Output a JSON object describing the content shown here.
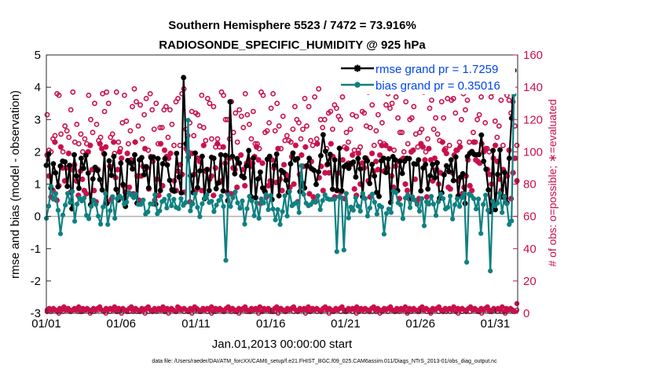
{
  "chart_data": {
    "type": "line",
    "title": "Southern Hemisphere 5523 / 7472 = 73.916%",
    "subtitle": "RADIOSONDE_SPECIFIC_HUMIDITY @ 925 hPa",
    "xlabel": "Jan.01,2013 00:00:00 start",
    "ylabel": "rmse and bias (model - observation)",
    "y2label": "# of obs: o=possible; ∗=evaluated",
    "x_tick_labels": [
      "01/01",
      "01/06",
      "01/11",
      "01/16",
      "01/21",
      "01/26",
      "01/31"
    ],
    "x_tick_days": [
      0,
      5,
      10,
      15,
      20,
      25,
      30
    ],
    "xlim": [
      0,
      31.5
    ],
    "ylim": [
      -3,
      5
    ],
    "y_ticks": [
      -3,
      -2,
      -1,
      0,
      1,
      2,
      3,
      4,
      5
    ],
    "y2lim": [
      0,
      160
    ],
    "y2_ticks": [
      0,
      20,
      40,
      60,
      80,
      100,
      120,
      140,
      160
    ],
    "legend": [
      "rmse grand pr = 1.7259",
      "bias grand pr = 0.35016"
    ],
    "footer": "data file: /Users/raeder/DAI/ATM_forcXX/CAM6_setup/f.e21.FHIST_BGC.f09_025.CAM6assim.011/Diags_NTrS_2013-01/obs_diag_output.nc",
    "series": [
      {
        "name": "rmse",
        "color": "#000000",
        "values": [
          1.58,
          1.93,
          0.88,
          1.63,
          1.35,
          0.92,
          1.56,
          1.71,
          1.69,
          0.93,
          1.58,
          0.24,
          1.91,
          1.25,
          0.87,
          1.8,
          1.49,
          1.89,
          1.34,
          0.36,
          1.16,
          1.52,
          1.42,
          1.14,
          0.82,
          1.93,
          0.4,
          1.72,
          1.27,
          1.86,
          0.84,
          0.51,
          1.65,
          0.99,
          0.31,
          1.73,
          1.66,
          1.47,
          1.91,
          0.41,
          1.75,
          1.82,
          1.29,
          1.54,
          0.88,
          1.82,
          1.84,
          0.38,
          1.79,
          0.8,
          1.63,
          1.79,
          1.59,
          1.12,
          0.83,
          0.78,
          1.95,
          1.22,
          0.73,
          4.3,
          2.25,
          1.83,
          1.26,
          0.74,
          1.96,
          0.89,
          1.41,
          1.86,
          0.55,
          1.45,
          0.8,
          1.83,
          1.8,
          0.86,
          1.04,
          1.91,
          0.79,
          1.89,
          0.49,
          3.55,
          1.86,
          1.32,
          1.79,
          1.65,
          1.25,
          1.2,
          1.57,
          2.04,
          0.61,
          1.81,
          0.58,
          1.16,
          1.37,
          0.88,
          0.76,
          1.77,
          1.86,
          0.52,
          1.58,
          1.93,
          0.64,
          1.42,
          1.36,
          1.12,
          0.75,
          1.63,
          1.96,
          1.75,
          1.79,
          0.77,
          1.03,
          0.88,
          1.57,
          1.8,
          1.48,
          1.43,
          0.99,
          1.38,
          1.88,
          2.53,
          2.02,
          1.62,
          1.92,
          0.84,
          1.75,
          0.81,
          2.11,
          0.79,
          1.54,
          1.6,
          1.49,
          1.64,
          1.68,
          1.22,
          1.79,
          1.47,
          0.61,
          1.81,
          1.72,
          1.02,
          1.61,
          1.25,
          0.74,
          0.62,
          1.72,
          1.8,
          1.36,
          1.78,
          0.43,
          1.85,
          1.75,
          0.8,
          1.71,
          1.33,
          1.71,
          1.8,
          1.79,
          0.54,
          1.63,
          1.62,
          1.75,
          0.79,
          1.5,
          1.61,
          0.85,
          1.26,
          1.61,
          1.2,
          1.66,
          0.56,
          0.73,
          1.29,
          1.57,
          1.39,
          1.75,
          1.11,
          1.84,
          0.63,
          1.21,
          1.32,
          0.4,
          1.85,
          1.95,
          2.01,
          1.92,
          1.91,
          1.92,
          2.52,
          1.71,
          1.46,
          0.82,
          0.15,
          2.04,
          0.21,
          1.3,
          2.06,
          0.6,
          1.36,
          0.42,
          1.8,
          3.04,
          4.52
        ]
      },
      {
        "name": "bias",
        "color": "#108080",
        "values": [
          -0.06,
          0.32,
          0.93,
          0.53,
          0.71,
          0.19,
          -0.54,
          0.04,
          0.35,
          0.71,
          0.43,
          0.77,
          -0.15,
          0.38,
          0.57,
          0.48,
          0.57,
          0.03,
          -0.07,
          0.31,
          0.51,
          0.37,
          0.01,
          -0.24,
          0.29,
          0.71,
          -0.25,
          0.18,
          0.61,
          -0.06,
          0.55,
          0.63,
          0.57,
          0.38,
          0.44,
          0.74,
          0.66,
          0.58,
          0.69,
          0.37,
          0.37,
          0.51,
          0.07,
          0.14,
          0.39,
          0.38,
          0.67,
          0.08,
          0.17,
          0.46,
          0.53,
          0.26,
          0.65,
          0.33,
          0.53,
          0.28,
          0.24,
          0.55,
          0.34,
          0.43,
          2.98,
          0.17,
          0.39,
          0.7,
          0.28,
          -0.01,
          0.39,
          0.57,
          0.67,
          0.43,
          0.47,
          0.15,
          0.35,
          0.49,
          0.63,
          0.31,
          -1.36,
          0.67,
          0.31,
          0.58,
          0.76,
          0.42,
          0.25,
          0.48,
          -0.24,
          0.24,
          0.62,
          0.48,
          0.02,
          0.42,
          -0.06,
          0.54,
          0.42,
          0.67,
          0.21,
          0.65,
          0.23,
          -0.11,
          0.21,
          -0.25,
          0.15,
          0.64,
          0.01,
          0.77,
          0.33,
          0.39,
          0.43,
          0.12,
          1.57,
          0.68,
          0.41,
          0.33,
          0.37,
          0.46,
          0.45,
          0.64,
          0.21,
          0.49,
          0.67,
          0.55,
          0.52,
          0.53,
          0.53,
          -1.09,
          0.61,
          0.58,
          -1.04,
          0.71,
          -0.05,
          0.29,
          0.19,
          0.58,
          0.32,
          0.16,
          0.71,
          0.55,
          0.01,
          0.26,
          0.69,
          0.44,
          0.07,
          0.34,
          0.29,
          -0.55,
          0.09,
          0.23,
          0.12,
          0.79,
          0.74,
          0.42,
          0.36,
          -0.07,
          0.57,
          0.66,
          0.27,
          0.61,
          0.51,
          0.37,
          0.16,
          0.55,
          -0.29,
          0.45,
          0.38,
          0.62,
          0.38,
          0.03,
          0.45,
          0.69,
          0.55,
          0.23,
          0.28,
          0.63,
          -0.08,
          0.36,
          0.55,
          0.31,
          0.58,
          0.7,
          -1.42,
          0.69,
          0.64,
          0.55,
          0.23,
          0.54,
          -0.53,
          0.37,
          0.66,
          0.19,
          -1.69,
          0.47,
          0.33,
          0.41,
          0.72,
          0.12,
          0.62,
          0.39,
          -0.25,
          -0.14,
          3.77
        ]
      }
    ],
    "possible_counts": [
      123,
      101,
      100,
      108,
      110,
      136,
      135,
      111,
      100,
      116,
      113,
      109,
      126,
      137,
      106,
      117,
      105,
      111,
      100,
      108,
      105,
      135,
      120,
      112,
      130,
      117,
      107,
      109,
      136,
      125,
      137,
      130,
      109,
      111,
      99,
      137,
      106,
      102,
      118,
      135,
      119,
      105,
      113,
      128,
      139,
      131,
      116,
      129,
      108,
      123,
      133,
      101,
      136,
      126,
      114,
      130,
      105,
      115,
      115,
      126,
      128,
      109,
      126,
      117,
      104,
      131,
      133,
      104,
      136,
      139,
      114,
      110,
      118,
      125,
      110,
      124,
      123,
      116,
      135,
      115,
      107,
      133,
      130,
      108,
      128,
      103,
      108,
      103,
      137,
      135,
      120,
      120,
      108,
      131,
      112,
      124,
      106,
      126,
      122,
      115,
      136,
      123,
      117,
      108,
      125,
      105,
      105,
      102,
      137,
      135,
      112,
      113,
      118,
      127,
      136,
      113,
      130,
      116,
      102,
      122,
      107,
      110,
      107,
      106,
      114,
      128,
      120,
      118,
      108,
      114,
      133,
      116,
      128,
      107,
      104,
      134,
      108,
      139,
      120,
      115,
      120,
      102,
      124,
      125,
      114,
      129,
      127,
      122,
      120,
      134,
      103,
      112,
      106,
      114,
      123,
      101,
      122,
      101,
      103,
      125,
      124,
      116,
      137,
      115,
      129,
      104,
      113,
      123,
      106,
      118,
      105,
      129,
      136,
      127,
      130,
      101,
      134,
      121,
      112,
      112,
      100,
      131,
      105,
      120,
      121,
      128,
      111,
      103,
      112,
      114,
      137,
      100,
      108,
      127,
      132,
      114,
      121,
      111,
      107,
      131,
      121,
      102,
      133,
      104,
      132,
      133,
      124,
      101,
      106,
      120,
      136,
      126,
      132,
      106,
      100,
      112,
      106,
      120,
      123,
      134,
      139,
      118,
      102,
      100,
      134,
      137,
      119,
      109,
      116,
      132,
      104,
      137,
      135,
      132,
      124,
      131,
      116,
      104
    ],
    "evaluated_counts": [
      98,
      85,
      72,
      76,
      106,
      70,
      79,
      103,
      90,
      82,
      90,
      99,
      75,
      89,
      92,
      82,
      73,
      88,
      83,
      76,
      74,
      100,
      104,
      89,
      76,
      69,
      89,
      105,
      102,
      99,
      103,
      69,
      91,
      71,
      106,
      84,
      89,
      100,
      96,
      79,
      75,
      99,
      78,
      95,
      74,
      106,
      85,
      70,
      85,
      91,
      102,
      90,
      77,
      97,
      94,
      70,
      83,
      73,
      105,
      79,
      101,
      97,
      96,
      99,
      76,
      82,
      76,
      88,
      92,
      86,
      75,
      102,
      100,
      69,
      99,
      86,
      76,
      96,
      94,
      76,
      104,
      88,
      89,
      83,
      85,
      73,
      90,
      105,
      81,
      82,
      103,
      93,
      75,
      96,
      74,
      90,
      89,
      78,
      93,
      98,
      89,
      79,
      93,
      95,
      91,
      93,
      97,
      103,
      95,
      68,
      93,
      76,
      72,
      79,
      82,
      95,
      90,
      81,
      102,
      83,
      76,
      92,
      86,
      85,
      78,
      97,
      80,
      104,
      69,
      86,
      98,
      91,
      103,
      91,
      74,
      94,
      72,
      69,
      105,
      84,
      91,
      76,
      87,
      92,
      87,
      105,
      97,
      72,
      76,
      87,
      75,
      95,
      71,
      102,
      93,
      92,
      98,
      77,
      73,
      99,
      80,
      93,
      90,
      96,
      82,
      72,
      99,
      88,
      94,
      89,
      98,
      104,
      88,
      104,
      90,
      102,
      85,
      78,
      91,
      94,
      71,
      95,
      96,
      80,
      76,
      71,
      100,
      101,
      83,
      69,
      71,
      105,
      103,
      95,
      72,
      102,
      95,
      82,
      96,
      89,
      80,
      87,
      106,
      101,
      99,
      78,
      77,
      87,
      98,
      101,
      82,
      103,
      74,
      78,
      85,
      95,
      79,
      76,
      106,
      95,
      94,
      93,
      105,
      100,
      102,
      89,
      86,
      80,
      96,
      104,
      94,
      83,
      76,
      89,
      72,
      85,
      101,
      71,
      87,
      96,
      82
    ],
    "bottom_possible_counts": [
      2,
      1,
      2,
      0,
      1,
      2,
      1,
      2,
      1,
      1,
      2,
      0,
      1,
      2,
      2,
      0,
      1,
      2,
      1,
      0,
      2,
      1,
      1,
      1,
      2,
      0,
      1,
      2,
      1,
      2,
      1,
      0,
      2,
      1,
      2,
      1,
      1,
      0,
      2,
      1,
      2,
      1,
      0,
      1,
      2,
      1,
      2,
      1,
      1,
      0,
      2,
      1,
      1,
      2,
      0,
      1,
      2,
      1,
      1,
      0,
      2,
      1,
      2,
      1,
      1,
      2,
      0,
      1,
      2,
      1,
      1,
      2,
      0,
      1,
      2,
      1,
      1,
      2,
      1,
      0,
      2,
      1,
      2,
      1,
      1,
      0,
      2,
      1,
      2,
      1,
      1,
      2,
      0,
      1,
      2,
      1,
      2,
      1,
      0,
      2,
      1,
      2,
      1,
      1,
      2,
      0,
      1,
      2,
      1,
      2,
      1,
      0,
      2,
      1,
      2,
      1,
      1,
      0,
      2,
      1,
      2
    ],
    "bottom_evaluated_counts": [
      1,
      3,
      2,
      3,
      2,
      1,
      3,
      2,
      4,
      2,
      3,
      1,
      2,
      3,
      2,
      4,
      1,
      3,
      2,
      3,
      2,
      1,
      3,
      2,
      3,
      4,
      2,
      1,
      3,
      2,
      3,
      2,
      4,
      1,
      3,
      2,
      3,
      2,
      1,
      3,
      4,
      2,
      3,
      2,
      1,
      3,
      2,
      3,
      4,
      2,
      1,
      3,
      2,
      3,
      2,
      4,
      1,
      3,
      2,
      3,
      2,
      1,
      4,
      3,
      2,
      3,
      2,
      1,
      3,
      2,
      4,
      3,
      2,
      1,
      3,
      2,
      3,
      2,
      4,
      1,
      3,
      2,
      3,
      2,
      1,
      3,
      4,
      2,
      3,
      2,
      1,
      3,
      2,
      3,
      4,
      2,
      1,
      3,
      2,
      3,
      2,
      4,
      1,
      3,
      2,
      3,
      2,
      1,
      3,
      4,
      2,
      3,
      2,
      1,
      3,
      2,
      3,
      4,
      2,
      1,
      3,
      2,
      3,
      2,
      4,
      1,
      3,
      2,
      3,
      2,
      1,
      3,
      4,
      2,
      3,
      2,
      1,
      3,
      2,
      3,
      4,
      2,
      1,
      3,
      2,
      3,
      2,
      4,
      1,
      3,
      2,
      3,
      2,
      1,
      3,
      4,
      2,
      3,
      2,
      1,
      3,
      2,
      3,
      4,
      2,
      1,
      3,
      2,
      3,
      2,
      4,
      1,
      3,
      2,
      3,
      2,
      1,
      3,
      4,
      2,
      3,
      2,
      1,
      3,
      2,
      3,
      4,
      2,
      1,
      3,
      2,
      3,
      2,
      4,
      1,
      3,
      2,
      3,
      2,
      1,
      3,
      4,
      2,
      3,
      2,
      1,
      3,
      2,
      3,
      4,
      2,
      1,
      3,
      2,
      3,
      2,
      4,
      1,
      3,
      2,
      3,
      2,
      1,
      6
    ]
  },
  "colors": {
    "rmse": "#000000",
    "bias": "#108080",
    "counts": "#c8104a",
    "zero_line": "#b0b0b0",
    "legend_text": "#0044ee"
  }
}
